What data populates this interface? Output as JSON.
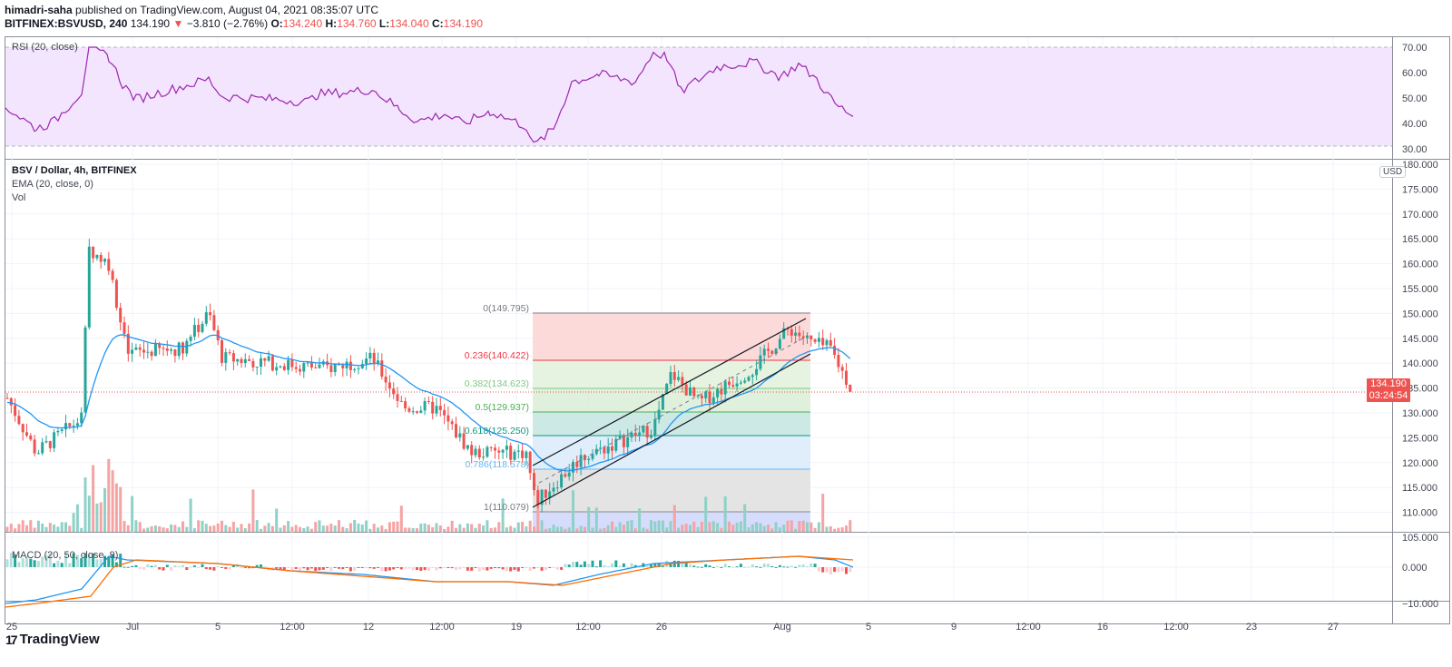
{
  "header": {
    "author": "himadri-saha",
    "published_text": "published on TradingView.com, August 04, 2021 08:35:07 UTC",
    "symbol": "BITFINEX:BSVUSD, 240",
    "last": "134.190",
    "change_arrow": "▼",
    "change": "−3.810 (−2.76%)",
    "o_label": "O:",
    "o": "134.240",
    "h_label": "H:",
    "h": "134.760",
    "l_label": "L:",
    "l": "134.040",
    "c_label": "C:",
    "c": "134.190"
  },
  "rsi_pane": {
    "legend": "RSI (20, close)",
    "axis": [
      "70.00",
      "60.00",
      "50.00",
      "40.00",
      "30.00"
    ]
  },
  "main_pane": {
    "title": "BSV / Dollar, 4h, BITFINEX",
    "ema_legend": "EMA (20, close, 0)",
    "vol_legend": "Vol",
    "currency_badge": "USD",
    "axis": [
      "180.000",
      "175.000",
      "170.000",
      "165.000",
      "160.000",
      "155.000",
      "150.000",
      "145.000",
      "140.000",
      "135.000",
      "130.000",
      "125.000",
      "120.000",
      "115.000",
      "110.000",
      "105.000"
    ],
    "price_tag": {
      "price": "134.190",
      "countdown": "03:24:54"
    }
  },
  "fib": {
    "levels": [
      {
        "label": "0(149.795)",
        "color": "#787b86"
      },
      {
        "label": "0.236(140.422)",
        "color": "#f23645"
      },
      {
        "label": "0.382(134.623)",
        "color": "#81c784"
      },
      {
        "label": "0.5(129.937)",
        "color": "#4caf50"
      },
      {
        "label": "0.618(125.250)",
        "color": "#089981"
      },
      {
        "label": "0.786(118.578)",
        "color": "#64b5f6"
      },
      {
        "label": "1(110.079)",
        "color": "#787b86"
      }
    ]
  },
  "macd_pane": {
    "legend": "MACD (20, 50, close, 9)",
    "axis": [
      "0.000",
      "−10.000"
    ]
  },
  "time_axis": [
    "25",
    "Jul",
    "5",
    "12:00",
    "12",
    "12:00",
    "19",
    "12:00",
    "26",
    "Aug",
    "5",
    "9",
    "12:00",
    "16",
    "12:00",
    "23",
    "27"
  ],
  "footer": {
    "logo_mark": "17",
    "logo_text": "TradingView"
  },
  "colors": {
    "up": "#26a69a",
    "down": "#ef5350",
    "ema": "#2196f3",
    "rsi": "#9c27b0",
    "macd": "#2196f3",
    "signal": "#ff6d00"
  },
  "chart_data": [
    {
      "type": "line",
      "title": "RSI (20, close)",
      "ylim": [
        30,
        70
      ],
      "x": [
        "Jun 25",
        "Jul 1",
        "Jul 5",
        "Jul 12",
        "Jul 19",
        "Jul 26",
        "Aug 1",
        "Aug 4"
      ],
      "series": [
        {
          "name": "RSI",
          "values": [
            46,
            69,
            52,
            48,
            30,
            62,
            64,
            42
          ]
        }
      ]
    },
    {
      "type": "candlestick",
      "title": "BSV / Dollar, 4h, BITFINEX",
      "ylim": [
        105,
        180
      ],
      "x": [
        "Jun 25",
        "Jun 28",
        "Jun 29",
        "Jul 1",
        "Jul 5",
        "Jul 12",
        "Jul 15",
        "Jul 19",
        "Jul 20",
        "Jul 26",
        "Aug 1",
        "Aug 2",
        "Aug 4"
      ],
      "series": [
        {
          "name": "Close",
          "values": [
            133,
            122,
            163,
            140,
            150,
            139,
            130,
            122,
            112,
            135,
            146,
            143,
            134.19
          ]
        },
        {
          "name": "EMA 20",
          "values": [
            132,
            127,
            132,
            146,
            144,
            141,
            133,
            124,
            119,
            130,
            140,
            143,
            139
          ]
        }
      ],
      "annotations": [
        "Fib retracement 149.795 → 110.079",
        "Ascending parallel channel Jul 20 – Aug 2"
      ]
    },
    {
      "type": "line",
      "title": "MACD (20, 50, close, 9)",
      "ylim": [
        -12,
        4
      ],
      "x": [
        "Jun 25",
        "Jul 1",
        "Jul 5",
        "Jul 12",
        "Jul 19",
        "Jul 22",
        "Jul 29",
        "Aug 2",
        "Aug 4"
      ],
      "series": [
        {
          "name": "MACD",
          "values": [
            -10,
            3,
            1,
            -1,
            -3,
            -4,
            1,
            3,
            1.5
          ]
        },
        {
          "name": "Signal",
          "values": [
            -11,
            2,
            1,
            -1,
            -3,
            -3.5,
            0.5,
            3,
            2
          ]
        }
      ]
    }
  ]
}
